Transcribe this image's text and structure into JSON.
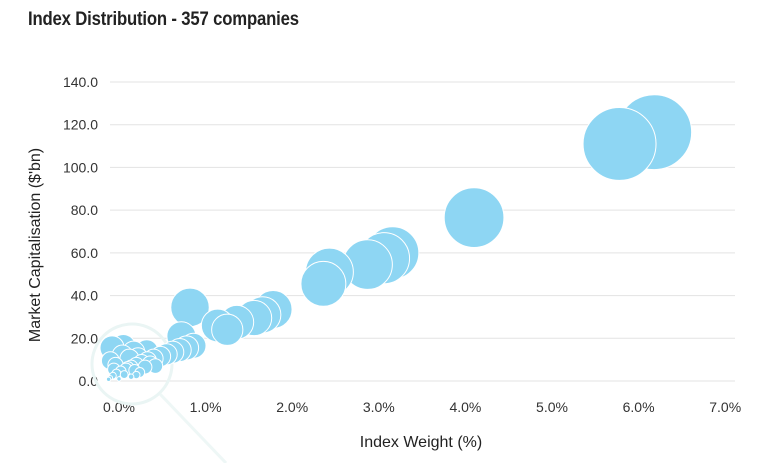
{
  "header": {
    "title": "Index Distribution - 357 companies"
  },
  "chart_data": {
    "type": "scatter",
    "title": "Index Distribution - 357 companies",
    "xlabel": "Index Weight (%)",
    "ylabel": "Market Capitalisation ($'bn)",
    "xlim": [
      -0.2,
      7.0
    ],
    "ylim": [
      0,
      140
    ],
    "xticks": [
      "0.0%",
      "1.0%",
      "2.0%",
      "3.0%",
      "4.0%",
      "5.0%",
      "6.0%",
      "7.0%"
    ],
    "yticks": [
      "0.0",
      "20.0",
      "40.0",
      "60.0",
      "80.0",
      "100.0",
      "120.0",
      "140.0"
    ],
    "grid": "horizontal",
    "color": "#8ed6f3",
    "bubble_size": "proportional to market capitalisation",
    "points": [
      {
        "x": 6.18,
        "y": 116.5
      },
      {
        "x": 5.78,
        "y": 111.0
      },
      {
        "x": 4.1,
        "y": 76.5
      },
      {
        "x": 3.16,
        "y": 60.0
      },
      {
        "x": 3.06,
        "y": 57.5
      },
      {
        "x": 2.87,
        "y": 54.5
      },
      {
        "x": 2.43,
        "y": 51.0
      },
      {
        "x": 2.36,
        "y": 45.5
      },
      {
        "x": 0.82,
        "y": 34.5
      },
      {
        "x": 1.78,
        "y": 33.5
      },
      {
        "x": 1.66,
        "y": 31.0
      },
      {
        "x": 1.56,
        "y": 29.5
      },
      {
        "x": 1.36,
        "y": 27.5
      },
      {
        "x": 1.14,
        "y": 26.0
      },
      {
        "x": 1.25,
        "y": 24.0
      },
      {
        "x": 0.72,
        "y": 21.0
      },
      {
        "x": 0.86,
        "y": 16.5
      },
      {
        "x": 0.78,
        "y": 15.5
      },
      {
        "x": 0.7,
        "y": 14.5
      },
      {
        "x": 0.62,
        "y": 13.5
      },
      {
        "x": 0.55,
        "y": 12.5
      },
      {
        "x": 0.48,
        "y": 11.5
      },
      {
        "x": 0.4,
        "y": 10.5
      },
      {
        "x": 0.33,
        "y": 9.5
      },
      {
        "x": 0.26,
        "y": 8.5
      },
      {
        "x": 0.2,
        "y": 7.5
      },
      {
        "x": 0.14,
        "y": 6.5
      },
      {
        "x": 0.08,
        "y": 5.5
      },
      {
        "x": 0.02,
        "y": 4.5
      },
      {
        "x": -0.03,
        "y": 3.5
      },
      {
        "x": -0.07,
        "y": 2.5
      },
      {
        "x": -0.1,
        "y": 1.5
      },
      {
        "x": -0.12,
        "y": 0.8
      },
      {
        "x": -0.08,
        "y": 15.5
      },
      {
        "x": 0.05,
        "y": 16.0
      },
      {
        "x": 0.17,
        "y": 13.5
      },
      {
        "x": 0.32,
        "y": 14.0
      },
      {
        "x": 0.04,
        "y": 12.0
      },
      {
        "x": -0.1,
        "y": 9.5
      },
      {
        "x": 0.12,
        "y": 10.5
      },
      {
        "x": 0.22,
        "y": 11.0
      },
      {
        "x": -0.04,
        "y": 7.5
      },
      {
        "x": 0.1,
        "y": 6.0
      },
      {
        "x": 0.18,
        "y": 5.0
      },
      {
        "x": 0.24,
        "y": 4.0
      },
      {
        "x": 0.3,
        "y": 6.5
      },
      {
        "x": 0.06,
        "y": 3.0
      },
      {
        "x": -0.06,
        "y": 5.5
      },
      {
        "x": 0.14,
        "y": 2.0
      },
      {
        "x": 0.0,
        "y": 1.0
      },
      {
        "x": 0.36,
        "y": 8.0
      },
      {
        "x": 0.42,
        "y": 7.0
      },
      {
        "x": 0.2,
        "y": 2.8
      }
    ]
  }
}
